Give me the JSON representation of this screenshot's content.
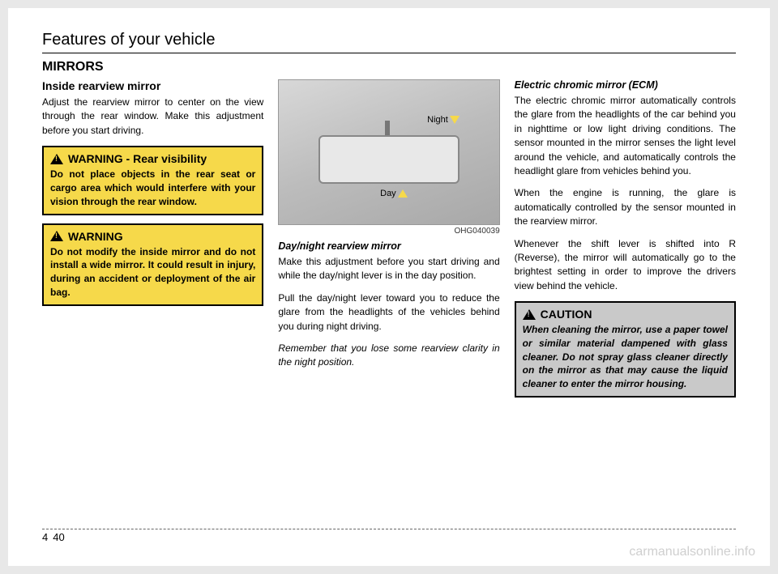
{
  "header": {
    "chapter": "Features of your vehicle"
  },
  "section": {
    "title": "MIRRORS"
  },
  "col1": {
    "sub1_title": "Inside rearview mirror",
    "sub1_body": "Adjust the rearview mirror to center on the view through the rear window. Make this adjustment before you start driving.",
    "warn1_title": "WARNING - Rear visibility",
    "warn1_body": "Do not place objects in the rear seat or cargo area which would interfere with your vision through the rear window.",
    "warn2_title": "WARNING",
    "warn2_body": "Do not modify the inside mirror and do not install a wide mirror. It could result in injury, during an accident or deployment of the air bag."
  },
  "col2": {
    "illus_label_night": "Night",
    "illus_label_day": "Day",
    "illus_code": "OHG040039",
    "sub1_title": "Day/night rearview mirror",
    "sub1_p1": "Make this adjustment before you start driving and while the day/night lever is in the day position.",
    "sub1_p2": "Pull the day/night lever toward you to reduce the glare from the headlights of the vehicles behind you during night driving.",
    "sub1_p3": "Remember that you lose some rearview clarity in the night position."
  },
  "col3": {
    "sub1_title": "Electric chromic mirror (ECM)",
    "sub1_p1": "The electric chromic mirror automatically controls the glare from the headlights of the car behind you in nighttime or low light driving conditions. The sensor mounted in the mirror senses the light level around the vehicle, and automatically controls the headlight glare from vehicles behind you.",
    "sub1_p2": "When the engine is running, the glare is automatically controlled by the sensor mounted in the rearview mirror.",
    "sub1_p3": "Whenever the shift lever is shifted into R (Reverse), the mirror will automatically go to the brightest setting in order to improve the drivers view behind the vehicle.",
    "caution_title": "CAUTION",
    "caution_body": "When cleaning the mirror, use a paper towel or similar material dampened with glass cleaner. Do not spray glass cleaner directly on the mirror as that may cause the liquid cleaner to enter the mirror housing."
  },
  "footer": {
    "section_num": "4",
    "page_num": "40"
  },
  "watermark": "carmanualsonline.info",
  "colors": {
    "warning_bg": "#f6d94a",
    "caution_bg": "#c9c9c9",
    "page_bg": "#ffffff",
    "body_bg": "#e8e8e8"
  }
}
